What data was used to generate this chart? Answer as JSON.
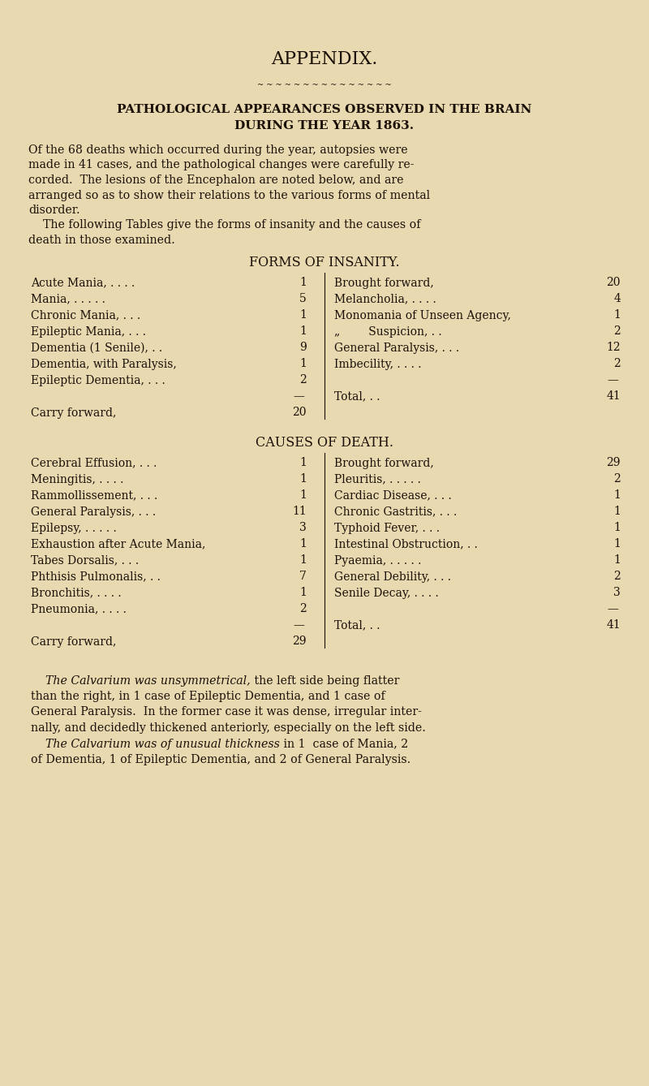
{
  "bg_color": "#e8d9b0",
  "text_color": "#1a1008",
  "title": "APPENDIX.",
  "subtitle1": "PATHOLOGICAL APPEARANCES OBSERVED IN THE BRAIN",
  "subtitle2": "DURING THE YEAR 1863.",
  "intro": [
    "Of the 68 deaths which occurred during the year, autopsies were",
    "made in 41 cases, and the pathological changes were carefully re-",
    "corded.  The lesions of the Encephalon are noted below, and are",
    "arranged so as to show their relations to the various forms of mental",
    "disorder.",
    "    The following Tables give the forms of insanity and the causes of",
    "death in those examined."
  ],
  "forms_title": "FORMS OF INSANITY.",
  "causes_title": "CAUSES OF DEATH.",
  "forms_left": [
    [
      "Acute Mania, . . . .",
      "1"
    ],
    [
      "Mania, . . . . .",
      "5"
    ],
    [
      "Chronic Mania, . . .",
      "1"
    ],
    [
      "Epileptic Mania, . . .",
      "1"
    ],
    [
      "Dementia (1 Senile), . .",
      "9"
    ],
    [
      "Dementia, with Paralysis,",
      "1"
    ],
    [
      "Epileptic Dementia, . . .",
      "2"
    ],
    [
      "",
      ""
    ],
    [
      "Carry forward,",
      "20"
    ]
  ],
  "forms_right": [
    [
      "Brought forward,",
      "20"
    ],
    [
      "Melancholia, . . . .",
      "4"
    ],
    [
      "Monomania of Unseen Agency,",
      "1"
    ],
    [
      "„        Suspicion, . .",
      "2"
    ],
    [
      "General Paralysis, . . .",
      "12"
    ],
    [
      "Imbecility, . . . .",
      "2"
    ],
    [
      "",
      ""
    ],
    [
      "Total, . .",
      "41"
    ]
  ],
  "causes_left": [
    [
      "Cerebral Effusion, . . .",
      "1"
    ],
    [
      "Meningitis, . . . .",
      "1"
    ],
    [
      "Rammollissement, . . .",
      "1"
    ],
    [
      "General Paralysis, . . .",
      "11"
    ],
    [
      "Epilepsy, . . . . .",
      "3"
    ],
    [
      "Exhaustion after Acute Mania,",
      "1"
    ],
    [
      "Tabes Dorsalis, . . .",
      "1"
    ],
    [
      "Phthisis Pulmonalis, . .",
      "7"
    ],
    [
      "Bronchitis, . . . .",
      "1"
    ],
    [
      "Pneumonia, . . . .",
      "2"
    ],
    [
      "",
      ""
    ],
    [
      "Carry forward,",
      "29"
    ]
  ],
  "causes_right": [
    [
      "Brought forward,",
      "29"
    ],
    [
      "Pleuritis, . . . . .",
      "2"
    ],
    [
      "Cardiac Disease, . . .",
      "1"
    ],
    [
      "Chronic Gastritis, . . .",
      "1"
    ],
    [
      "Typhoid Fever, . . .",
      "1"
    ],
    [
      "Intestinal Obstruction, . .",
      "1"
    ],
    [
      "Pyaemia, . . . . .",
      "1"
    ],
    [
      "General Debility, . . .",
      "2"
    ],
    [
      "Senile Decay, . . . .",
      "3"
    ],
    [
      "",
      ""
    ],
    [
      "Total, . .",
      "41"
    ]
  ],
  "footer_lines": [
    {
      "italic": "    The Calvarium was unsymmetrical,",
      "normal": " the left side being flatter"
    },
    {
      "italic": "",
      "normal": "than the right, in 1 case of Epileptic Dementia, and 1 case of"
    },
    {
      "italic": "",
      "normal": "General Paralysis.  In the former case it was dense, irregular inter-"
    },
    {
      "italic": "",
      "normal": "nally, and decidedly thickened anteriorly, especially on the left side."
    },
    {
      "italic": "    The Calvarium was of unusual thickness",
      "normal": " in 1  case of Mania, 2"
    },
    {
      "italic": "",
      "normal": "of Dementia, 1 of Epileptic Dementia, and 2 of General Paralysis."
    }
  ]
}
